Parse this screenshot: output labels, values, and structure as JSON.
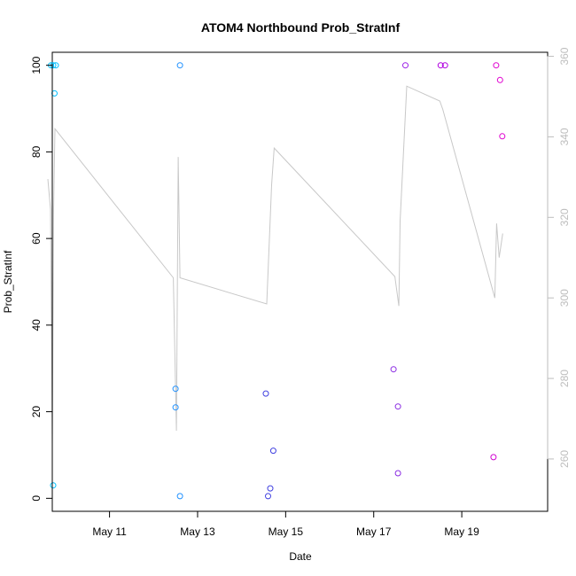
{
  "chart_data": {
    "type": "scatter",
    "title": "ATOM4 Northbound Prob_StratInf",
    "xlabel": "Date",
    "ylabel": "Prob_StratInf",
    "x_ticks": [
      {
        "label": "May 11",
        "day": 11
      },
      {
        "label": "May 13",
        "day": 13
      },
      {
        "label": "May 15",
        "day": 15
      },
      {
        "label": "May 17",
        "day": 17
      },
      {
        "label": "May 19",
        "day": 19
      }
    ],
    "xlim_days": [
      9.7,
      20.95
    ],
    "ylim": [
      -3,
      103
    ],
    "y_ticks": [
      0,
      20,
      40,
      60,
      80,
      100
    ],
    "y2lim": [
      247,
      361
    ],
    "y2_ticks": [
      260,
      280,
      300,
      320,
      340,
      360
    ],
    "points": [
      {
        "day": 9.67,
        "value": 100,
        "color": "#00bfff"
      },
      {
        "day": 9.72,
        "value": 100,
        "color": "#00bfff"
      },
      {
        "day": 9.75,
        "value": 93.5,
        "color": "#00bfff"
      },
      {
        "day": 9.78,
        "value": 100,
        "color": "#00bfff"
      },
      {
        "day": 9.72,
        "value": 3,
        "color": "#00bfff"
      },
      {
        "day": 12.5,
        "value": 21,
        "color": "#1e90ff"
      },
      {
        "day": 12.5,
        "value": 25.3,
        "color": "#1e90ff"
      },
      {
        "day": 12.6,
        "value": 100,
        "color": "#1e90ff"
      },
      {
        "day": 12.6,
        "value": 0.5,
        "color": "#1e90ff"
      },
      {
        "day": 14.55,
        "value": 24.2,
        "color": "#4040e0"
      },
      {
        "day": 14.6,
        "value": 0.5,
        "color": "#4040e0"
      },
      {
        "day": 14.65,
        "value": 2.3,
        "color": "#4040e0"
      },
      {
        "day": 14.72,
        "value": 11,
        "color": "#4040e0"
      },
      {
        "day": 17.45,
        "value": 29.8,
        "color": "#8a2be2"
      },
      {
        "day": 17.55,
        "value": 21.2,
        "color": "#8a2be2"
      },
      {
        "day": 17.55,
        "value": 5.8,
        "color": "#8a2be2"
      },
      {
        "day": 17.72,
        "value": 100,
        "color": "#9a1ee6"
      },
      {
        "day": 18.52,
        "value": 100,
        "color": "#b000e0"
      },
      {
        "day": 18.62,
        "value": 100,
        "color": "#b000e0"
      },
      {
        "day": 19.72,
        "value": 9.5,
        "color": "#d000d0"
      },
      {
        "day": 19.78,
        "value": 100,
        "color": "#e000d0"
      },
      {
        "day": 19.87,
        "value": 96.6,
        "color": "#e000d0"
      },
      {
        "day": 19.92,
        "value": 83.6,
        "color": "#e000d0"
      }
    ],
    "secondary_line": {
      "color": "#c8c8c8",
      "points": [
        {
          "day": 9.6,
          "value": 329.5
        },
        {
          "day": 9.66,
          "value": 322
        },
        {
          "day": 9.7,
          "value": 264
        },
        {
          "day": 9.73,
          "value": 322
        },
        {
          "day": 9.76,
          "value": 342
        },
        {
          "day": 12.45,
          "value": 305
        },
        {
          "day": 12.52,
          "value": 267
        },
        {
          "day": 12.56,
          "value": 335
        },
        {
          "day": 12.6,
          "value": 305
        },
        {
          "day": 14.57,
          "value": 298.5
        },
        {
          "day": 14.68,
          "value": 328
        },
        {
          "day": 14.74,
          "value": 337.2
        },
        {
          "day": 17.48,
          "value": 305.3
        },
        {
          "day": 17.57,
          "value": 298
        },
        {
          "day": 17.6,
          "value": 319
        },
        {
          "day": 17.75,
          "value": 352.6
        },
        {
          "day": 18.5,
          "value": 348.9
        },
        {
          "day": 18.57,
          "value": 346.8
        },
        {
          "day": 19.75,
          "value": 300
        },
        {
          "day": 19.79,
          "value": 318.5
        },
        {
          "day": 19.85,
          "value": 310
        },
        {
          "day": 19.93,
          "value": 316
        }
      ]
    }
  }
}
